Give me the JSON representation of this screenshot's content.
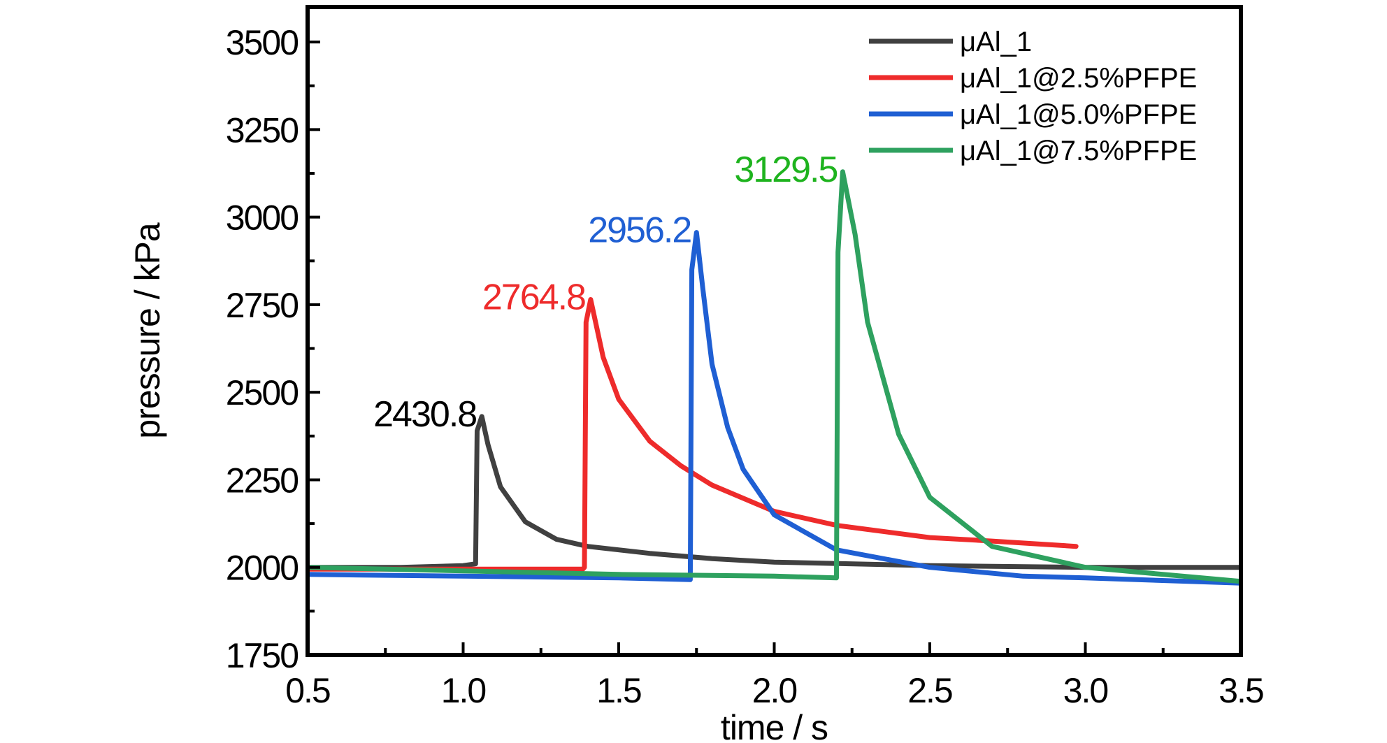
{
  "chart_data": {
    "type": "line",
    "title": "",
    "xlabel": "time / s",
    "ylabel": "pressure / kPa",
    "xlim": [
      0.5,
      3.5
    ],
    "ylim": [
      1750,
      3600
    ],
    "xticks": [
      0.5,
      1.0,
      1.5,
      2.0,
      2.5,
      3.0,
      3.5
    ],
    "xtick_labels": [
      "0.5",
      "1.0",
      "1.5",
      "2.0",
      "2.5",
      "3.0",
      "3.5"
    ],
    "yticks": [
      1750,
      2000,
      2250,
      2500,
      2750,
      3000,
      3250,
      3500
    ],
    "ytick_labels": [
      "1750",
      "2000",
      "2250",
      "2500",
      "2750",
      "3000",
      "3250",
      "3500"
    ],
    "grid": false,
    "legend_position": "top-right",
    "series": [
      {
        "name": "μAl_1",
        "color": "#404040",
        "x": [
          0.5,
          0.8,
          1.0,
          1.04,
          1.045,
          1.06,
          1.08,
          1.12,
          1.2,
          1.3,
          1.4,
          1.5,
          1.6,
          1.8,
          2.0,
          2.5,
          3.0,
          3.5
        ],
        "y": [
          2000,
          2000,
          2005,
          2010,
          2390,
          2430.8,
          2350,
          2230,
          2130,
          2080,
          2060,
          2050,
          2040,
          2025,
          2015,
          2005,
          2000,
          2000
        ]
      },
      {
        "name": "μAl_1@2.5%PFPE",
        "color": "#ee2b2b",
        "x": [
          0.5,
          1.0,
          1.385,
          1.39,
          1.395,
          1.41,
          1.45,
          1.5,
          1.6,
          1.7,
          1.8,
          2.0,
          2.2,
          2.5,
          2.7,
          2.97
        ],
        "y": [
          1995,
          1995,
          1995,
          2000,
          2700,
          2764.8,
          2600,
          2480,
          2360,
          2290,
          2235,
          2160,
          2120,
          2085,
          2075,
          2060
        ]
      },
      {
        "name": "μAl_1@5.0%PFPE",
        "color": "#1f5fd3",
        "x": [
          0.5,
          1.0,
          1.5,
          1.73,
          1.735,
          1.75,
          1.77,
          1.8,
          1.85,
          1.9,
          2.0,
          2.2,
          2.5,
          2.8,
          3.0,
          3.5
        ],
        "y": [
          1980,
          1975,
          1970,
          1965,
          2850,
          2956.2,
          2800,
          2580,
          2400,
          2280,
          2150,
          2050,
          2000,
          1975,
          1970,
          1955
        ]
      },
      {
        "name": "μAl_1@7.5%PFPE",
        "color": "#2ea15f",
        "x": [
          0.5,
          1.0,
          1.5,
          2.0,
          2.2,
          2.205,
          2.22,
          2.26,
          2.3,
          2.4,
          2.5,
          2.7,
          3.0,
          3.5
        ],
        "y": [
          2000,
          1990,
          1980,
          1975,
          1970,
          2900,
          3129.5,
          2950,
          2700,
          2380,
          2200,
          2060,
          2000,
          1960
        ]
      }
    ],
    "annotations": [
      {
        "text": "2430.8",
        "series": 0,
        "color": "#000000"
      },
      {
        "text": "2764.8",
        "series": 1,
        "color": "#ee2b2b"
      },
      {
        "text": "2956.2",
        "series": 2,
        "color": "#1f5fd3"
      },
      {
        "text": "3129.5",
        "series": 3,
        "color": "#1eb31e"
      }
    ]
  }
}
